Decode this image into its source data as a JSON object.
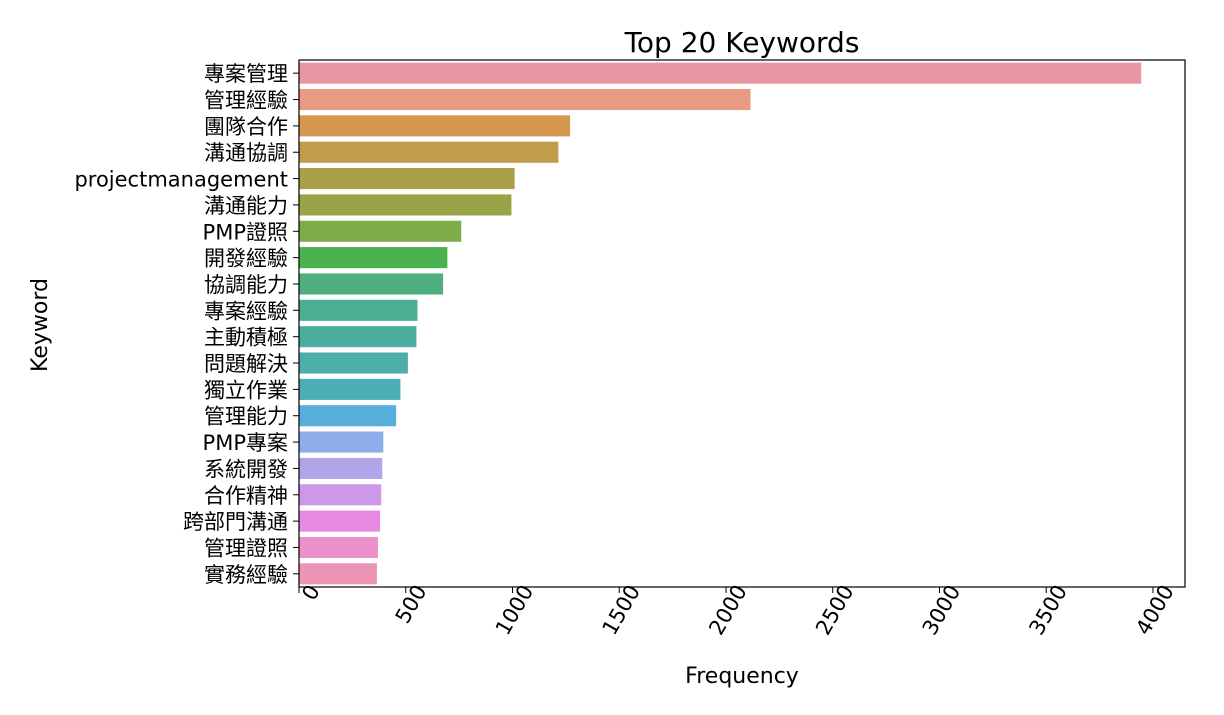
{
  "chart_data": {
    "type": "bar",
    "orientation": "horizontal",
    "title": "Top 20 Keywords",
    "xlabel": "Frequency",
    "ylabel": "Keyword",
    "xlim": [
      0,
      4150
    ],
    "xticks": [
      0,
      500,
      1000,
      1500,
      2000,
      2500,
      3000,
      3500,
      4000
    ],
    "grid": false,
    "categories": [
      "專案管理",
      "管理經驗",
      "團隊合作",
      "溝通協調",
      "projectmanagement",
      "溝通能力",
      "PMP證照",
      "開發經驗",
      "協調能力",
      "專案經驗",
      "主動積極",
      "問題解決",
      "獨立作業",
      "管理能力",
      "PMP專案",
      "系統開發",
      "合作精神",
      "跨部門溝通",
      "管理證照",
      "實務經驗"
    ],
    "values": [
      3945,
      2115,
      1270,
      1215,
      1010,
      995,
      760,
      695,
      675,
      555,
      550,
      510,
      475,
      455,
      395,
      390,
      385,
      380,
      370,
      365
    ],
    "colors": [
      "#ea96a2",
      "#e89a83",
      "#d69850",
      "#c29b4b",
      "#aa9f47",
      "#98a446",
      "#7fab48",
      "#4bb250",
      "#4db07d",
      "#4daf92",
      "#4cae9f",
      "#4daea9",
      "#4caeb5",
      "#57addc",
      "#8eace9",
      "#b0a5eb",
      "#cd98ea",
      "#e788e1",
      "#eb91c9",
      "#eb94b5"
    ]
  }
}
